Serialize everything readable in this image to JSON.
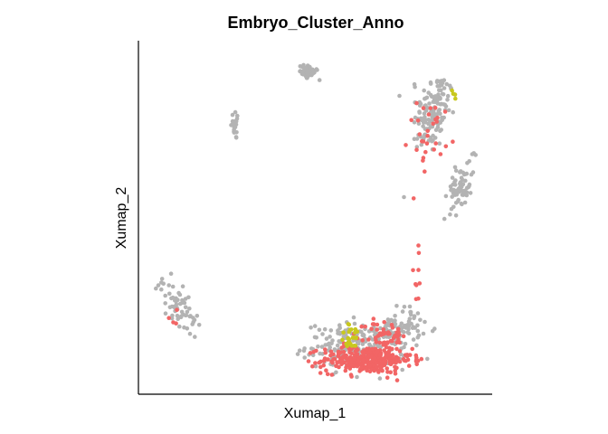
{
  "chart_data": {
    "type": "scatter",
    "title": "Embryo_Cluster_Anno",
    "xlabel": "Xumap_1",
    "ylabel": "Xumap_2",
    "xlim": [
      0,
      100
    ],
    "ylim": [
      0,
      100
    ],
    "x_ticks_shown": false,
    "y_ticks_shown": false,
    "grid": false,
    "legend": "none",
    "colors": {
      "gray": "#b3b3b3",
      "red": "#f26565",
      "yellow": "#c8c81e"
    },
    "clusters": [
      {
        "color": "gray",
        "n": 45,
        "cx": 48.5,
        "cy": 92.8,
        "sx": 1.5,
        "sy": 1.1,
        "rot": -25
      },
      {
        "color": "gray",
        "n": 20,
        "cx": 27.0,
        "cy": 77.2,
        "sx": 0.7,
        "sy": 2.2,
        "rot": 0
      },
      {
        "color": "gray",
        "n": 150,
        "cx": 85.5,
        "cy": 81.0,
        "sx": 2.6,
        "sy": 6.2,
        "rot": -10
      },
      {
        "color": "red",
        "n": 30,
        "cx": 84.5,
        "cy": 74.5,
        "sx": 2.5,
        "sy": 5.0,
        "rot": -10
      },
      {
        "color": "gray",
        "n": 70,
        "cx": 93.8,
        "cy": 59.0,
        "sx": 1.4,
        "sy": 4.4,
        "rot": -15
      },
      {
        "color": "yellow",
        "n": 4,
        "cx": 91.2,
        "cy": 86.2,
        "sx": 1.0,
        "sy": 0.8,
        "rot": 0
      },
      {
        "color": "gray",
        "n": 65,
        "cx": 10.0,
        "cy": 24.5,
        "sx": 1.8,
        "sy": 4.5,
        "rot": 35
      },
      {
        "color": "red",
        "n": 4,
        "cx": 8.0,
        "cy": 22.0,
        "sx": 1.2,
        "sy": 1.5,
        "rot": 0
      },
      {
        "color": "gray",
        "n": 200,
        "cx": 63.0,
        "cy": 12.5,
        "sx": 7.5,
        "sy": 3.3,
        "rot": 0
      },
      {
        "color": "gray",
        "n": 70,
        "cx": 76.5,
        "cy": 18.0,
        "sx": 3.2,
        "sy": 3.0,
        "rot": 0
      },
      {
        "color": "red",
        "n": 320,
        "cx": 66.0,
        "cy": 8.5,
        "sx": 6.6,
        "sy": 2.0,
        "rot": 0
      },
      {
        "color": "red",
        "n": 50,
        "cx": 71.5,
        "cy": 15.5,
        "sx": 3.0,
        "sy": 2.4,
        "rot": 0
      },
      {
        "color": "yellow",
        "n": 25,
        "cx": 61.5,
        "cy": 15.0,
        "sx": 1.7,
        "sy": 1.9,
        "rot": 0
      },
      {
        "color": "red",
        "n": 9,
        "cx": 81.0,
        "cy": 31.0,
        "sx": 1.0,
        "sy": 8.0,
        "rot": 0
      }
    ]
  }
}
